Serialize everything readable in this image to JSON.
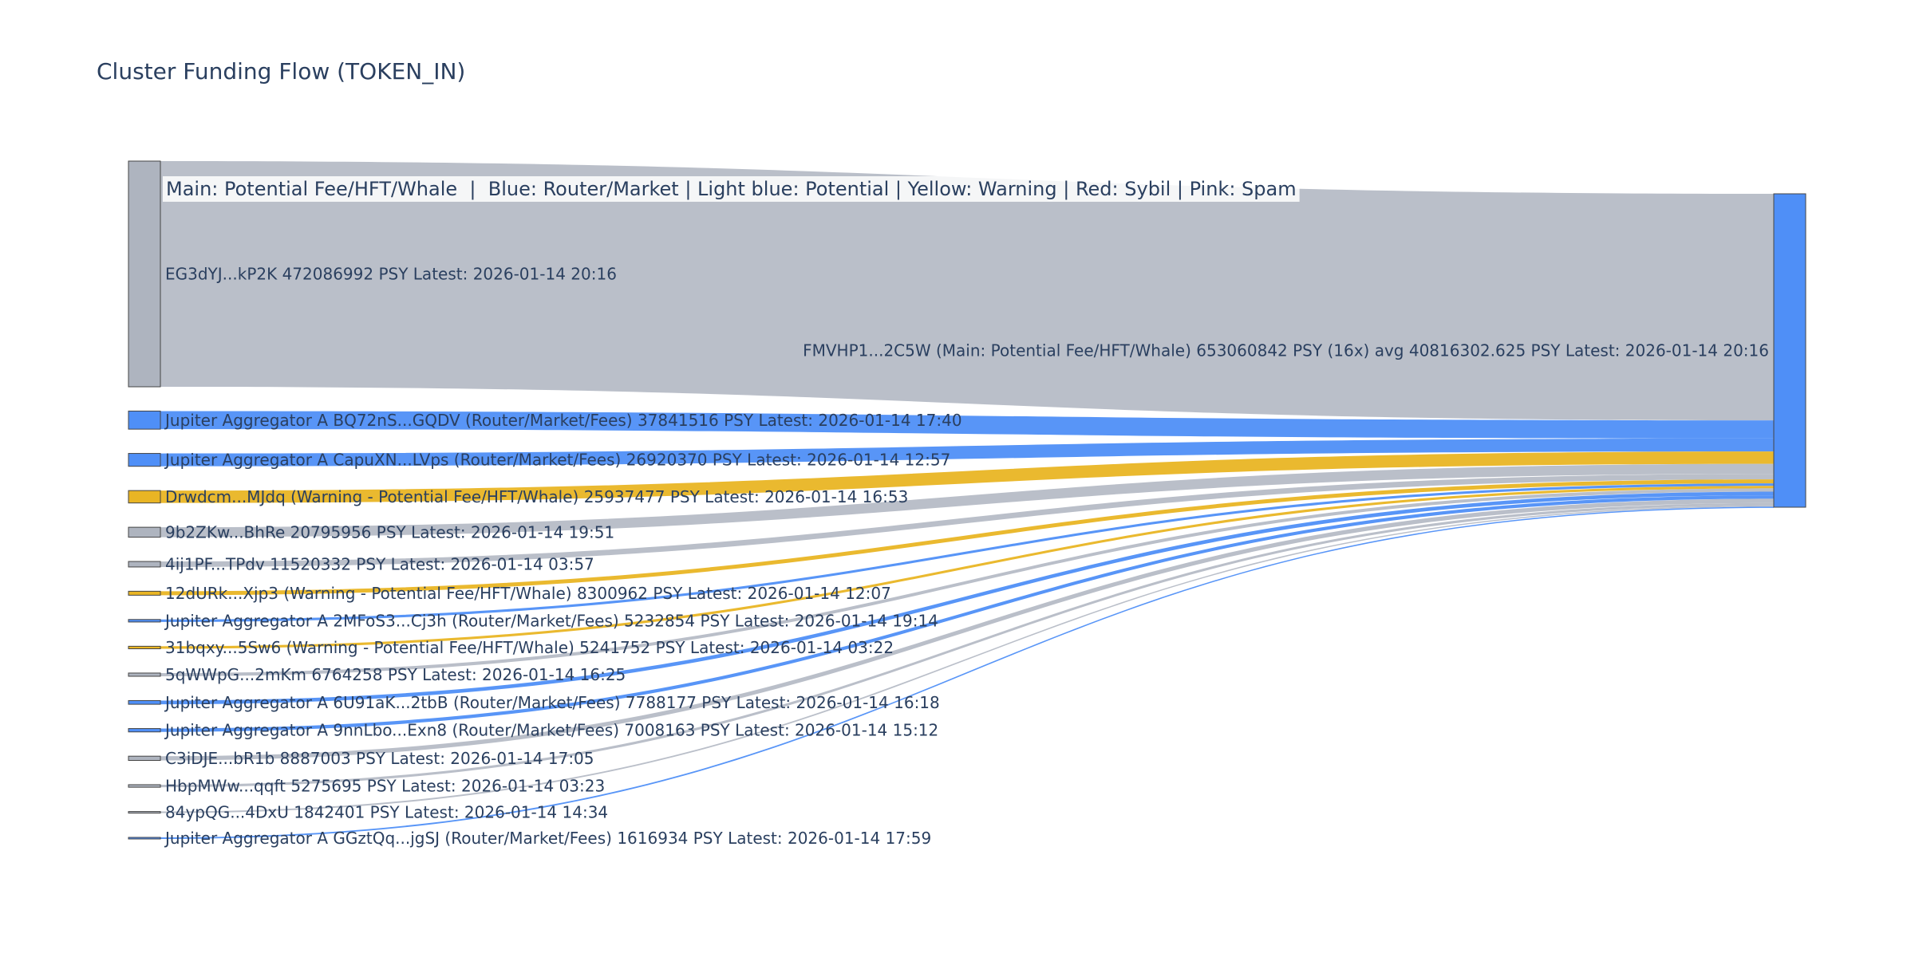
{
  "chart_data": {
    "type": "sankey",
    "title": "Cluster Funding Flow (TOKEN_IN)",
    "legend_text": "Main: Potential Fee/HFT/Whale  |  Blue: Router/Market | Light blue: Potential | Yellow: Warning | Red: Sybil | Pink: Spam",
    "unit": "PSY",
    "colors": {
      "gray": "#aeb4bf",
      "blue": "#4f8ff7",
      "yellow": "#e9b524",
      "target": "#4f8ff7",
      "label": "#2a3f5f"
    },
    "target": {
      "label": "FMVHP1...2C5W (Main: Potential Fee/HFT/Whale) 653060842 PSY (16x) avg 40816302.625 PSY Latest: 2026-01-14 20:16",
      "value": 653060842
    },
    "sources": [
      {
        "label": "EG3dYJ...kP2K 472086992 PSY Latest: 2026-01-14 20:16",
        "value": 472086992,
        "color": "gray"
      },
      {
        "label": "Jupiter Aggregator A BQ72nS...GQDV (Router/Market/Fees) 37841516 PSY Latest: 2026-01-14 17:40",
        "value": 37841516,
        "color": "blue"
      },
      {
        "label": "Jupiter Aggregator A CapuXN...LVps (Router/Market/Fees) 26920370 PSY Latest: 2026-01-14 12:57",
        "value": 26920370,
        "color": "blue"
      },
      {
        "label": "Drwdcm...MJdq (Warning - Potential Fee/HFT/Whale) 25937477 PSY Latest: 2026-01-14 16:53",
        "value": 25937477,
        "color": "yellow"
      },
      {
        "label": "9b2ZKw...BhRe 20795956 PSY Latest: 2026-01-14 19:51",
        "value": 20795956,
        "color": "gray"
      },
      {
        "label": "4ij1PF...TPdv 11520332 PSY Latest: 2026-01-14 03:57",
        "value": 11520332,
        "color": "gray"
      },
      {
        "label": "12dURk...Xjp3 (Warning - Potential Fee/HFT/Whale) 8300962 PSY Latest: 2026-01-14 12:07",
        "value": 8300962,
        "color": "yellow"
      },
      {
        "label": "Jupiter Aggregator A 2MFoS3...Cj3h (Router/Market/Fees) 5232854 PSY Latest: 2026-01-14 19:14",
        "value": 5232854,
        "color": "blue"
      },
      {
        "label": "31bqxy...5Sw6 (Warning - Potential Fee/HFT/Whale) 5241752 PSY Latest: 2026-01-14 03:22",
        "value": 5241752,
        "color": "yellow"
      },
      {
        "label": "5qWWpG...2mKm 6764258 PSY Latest: 2026-01-14 16:25",
        "value": 6764258,
        "color": "gray"
      },
      {
        "label": "Jupiter Aggregator A 6U91aK...2tbB (Router/Market/Fees) 7788177 PSY Latest: 2026-01-14 16:18",
        "value": 7788177,
        "color": "blue"
      },
      {
        "label": "Jupiter Aggregator A 9nnLbo...Exn8 (Router/Market/Fees) 7008163 PSY Latest: 2026-01-14 15:12",
        "value": 7008163,
        "color": "blue"
      },
      {
        "label": "C3iDJE...bR1b 8887003 PSY Latest: 2026-01-14 17:05",
        "value": 8887003,
        "color": "gray"
      },
      {
        "label": "HbpMWw...qqft 5275695 PSY Latest: 2026-01-14 03:23",
        "value": 5275695,
        "color": "gray"
      },
      {
        "label": "84ypQG...4DxU 1842401 PSY Latest: 2026-01-14 14:34",
        "value": 1842401,
        "color": "gray"
      },
      {
        "label": "Jupiter Aggregator A GGztQq...jgSJ (Router/Market/Fees) 1616934 PSY Latest: 2026-01-14 17:59",
        "value": 1616934,
        "color": "blue"
      }
    ]
  }
}
